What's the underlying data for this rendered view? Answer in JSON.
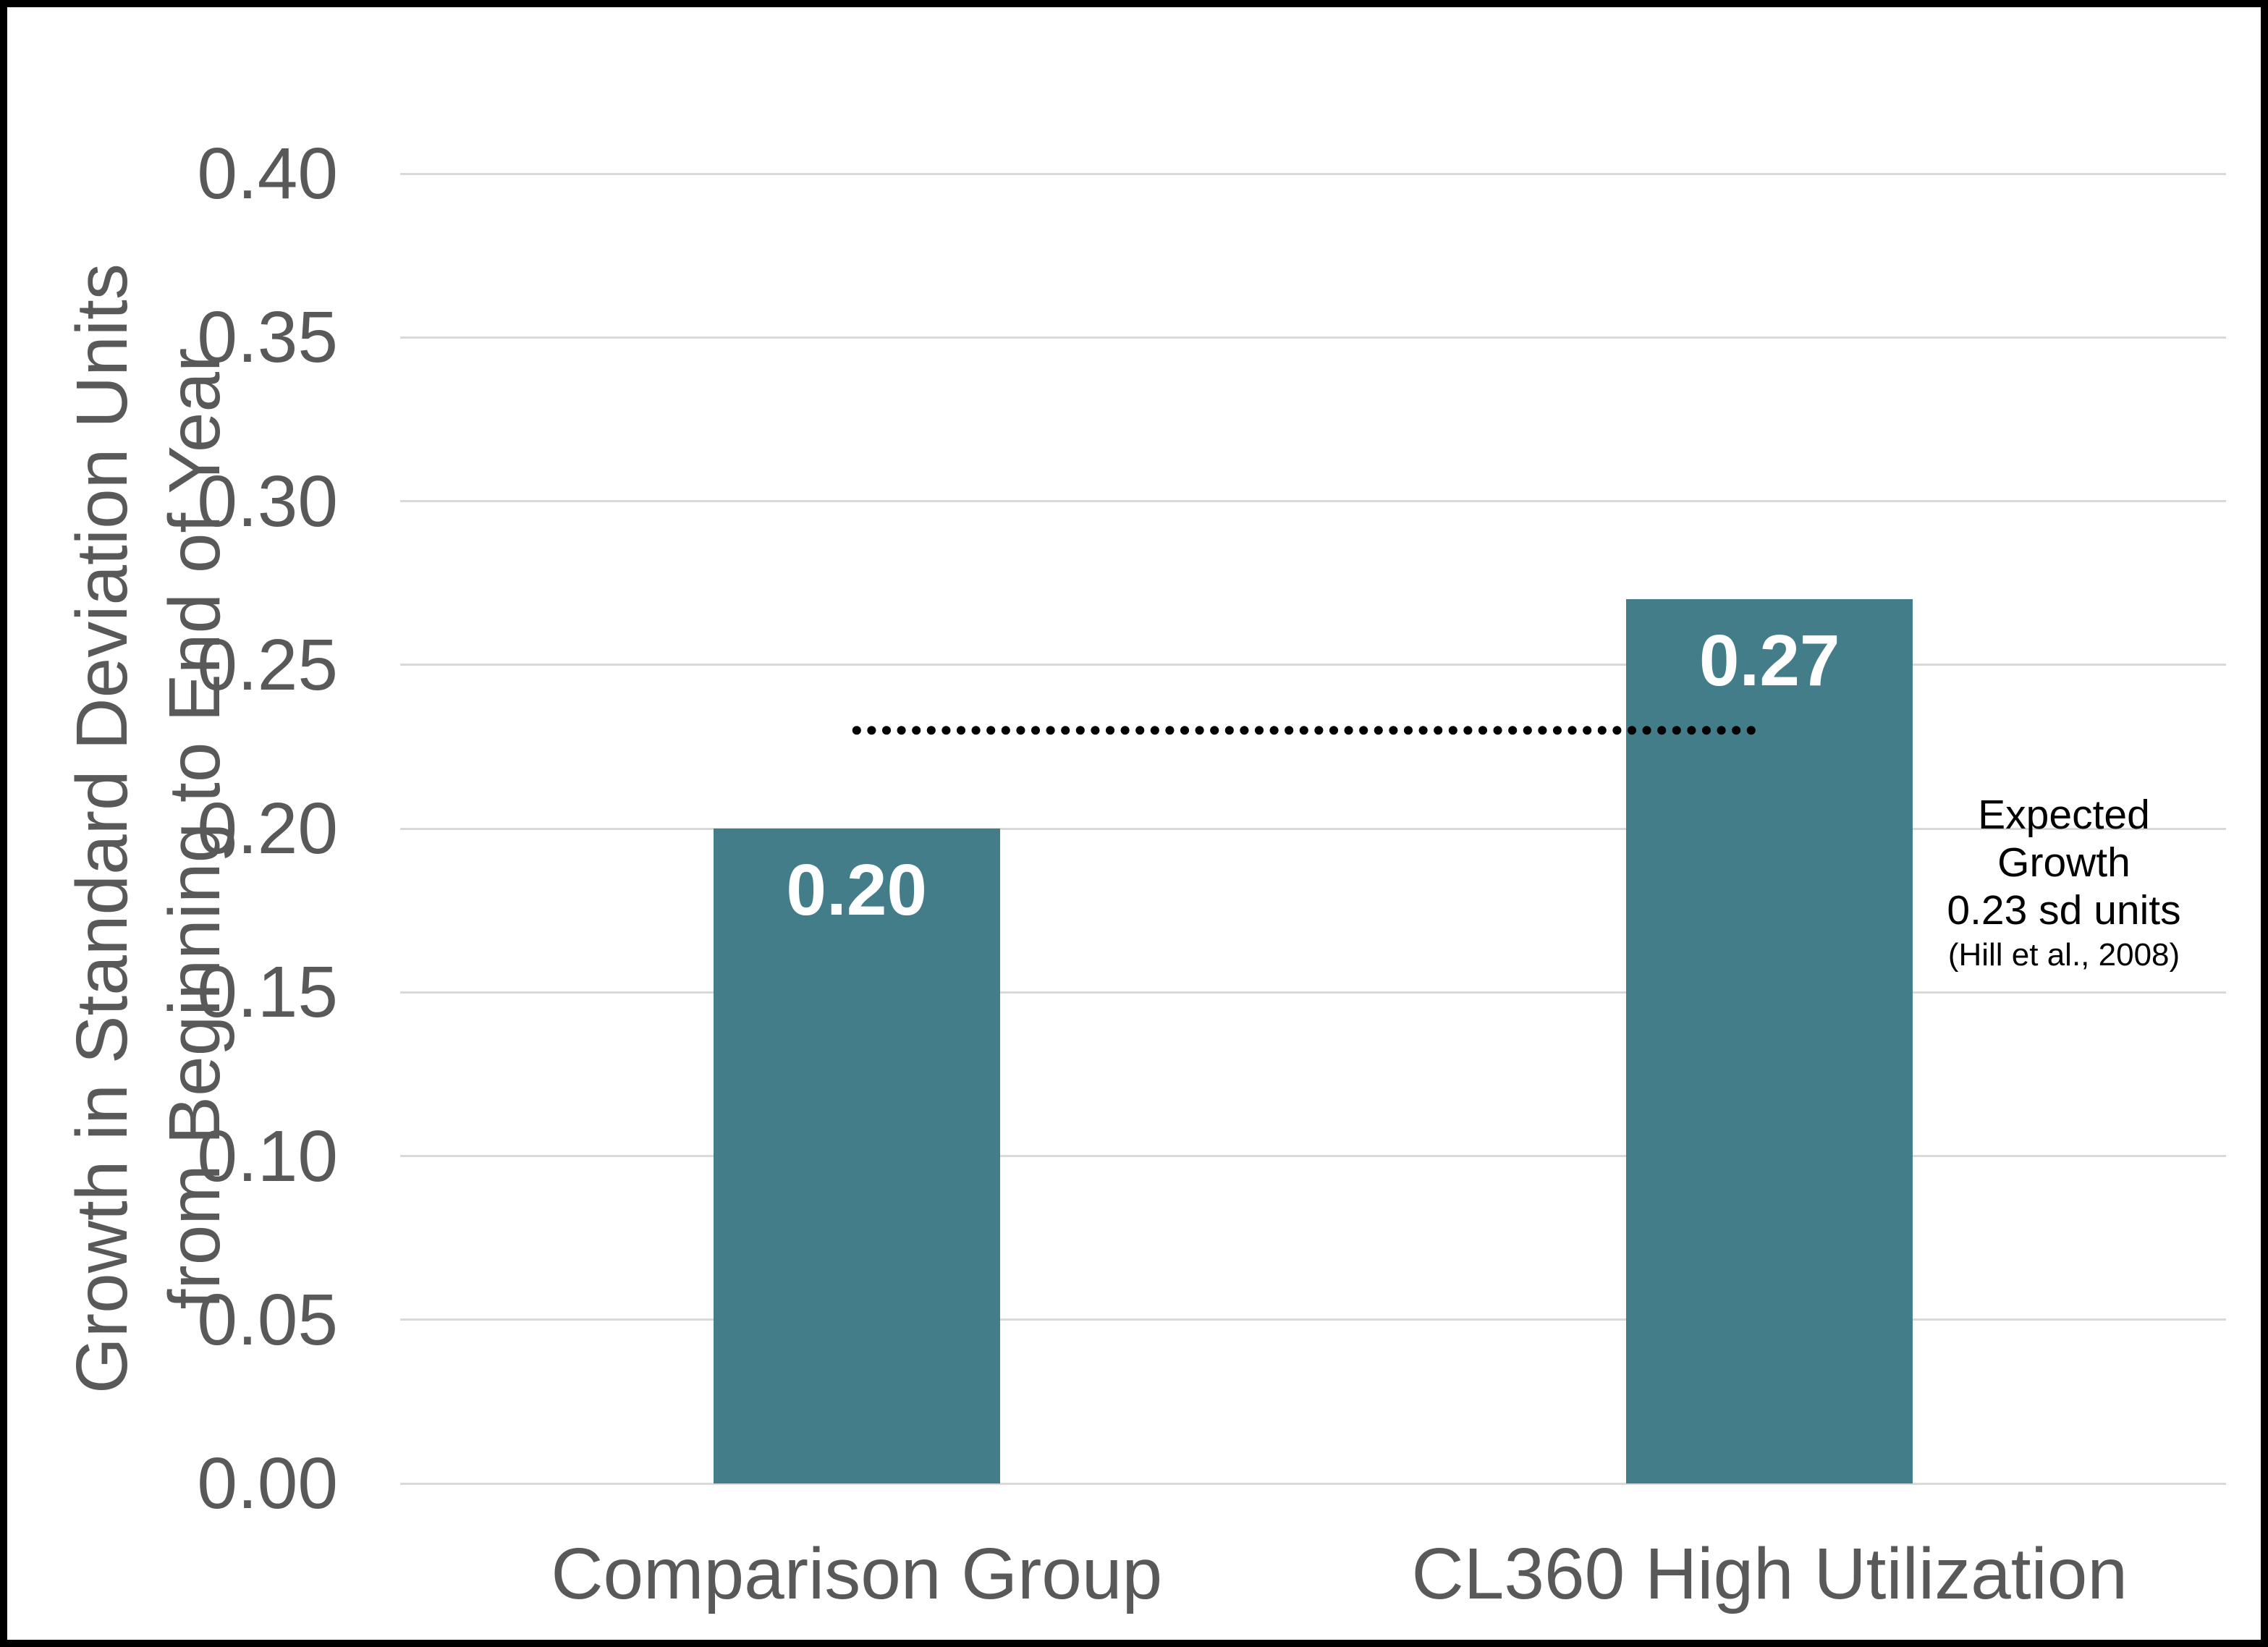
{
  "chart_data": {
    "type": "bar",
    "title": "",
    "categories": [
      "Comparison Group",
      "CL360 High Utilization"
    ],
    "values": [
      0.2,
      0.27
    ],
    "bar_labels": [
      "0.20",
      "0.27"
    ],
    "ylabel_lines": [
      "Growth in Standard Deviation Units",
      "from Beginning to End of Year"
    ],
    "xlabel": "",
    "ylim": [
      0,
      0.4
    ],
    "ytick_step": 0.05,
    "ytick_labels": [
      "0.00",
      "0.05",
      "0.10",
      "0.15",
      "0.20",
      "0.25",
      "0.30",
      "0.35",
      "0.40"
    ],
    "grid": true,
    "legend": "none",
    "reference_line": {
      "value": 0.23,
      "style": "dotted",
      "spans": "from center of first bar to center of second bar"
    },
    "annotation_lines": [
      "Expected",
      "Growth",
      "0.23 sd units",
      "(Hill et al., 2008)"
    ],
    "colors": {
      "bar": "#437D89",
      "bar_label_text": "#FFFFFF",
      "axis_text": "#595959",
      "gridline": "#D9D9D9",
      "reference_line": "#000000",
      "annotation_text": "#000000",
      "frame_border": "#000000",
      "background": "#FFFFFF"
    }
  }
}
